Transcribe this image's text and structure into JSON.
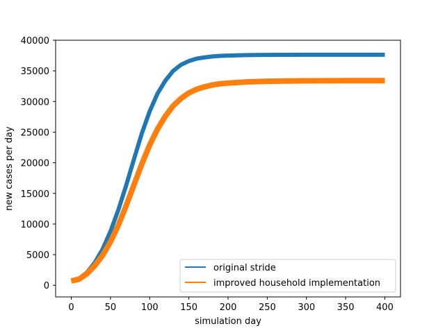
{
  "chart_data": {
    "type": "line",
    "title": "",
    "xlabel": "simulation day",
    "ylabel": "new cases per day",
    "xlim": [
      -20,
      420
    ],
    "ylim": [
      -1900,
      40000
    ],
    "x_ticks": [
      0,
      50,
      100,
      150,
      200,
      250,
      300,
      350,
      400
    ],
    "y_ticks": [
      0,
      5000,
      10000,
      15000,
      20000,
      25000,
      30000,
      35000,
      40000
    ],
    "grid": false,
    "legend_position": "bottom-right",
    "series": [
      {
        "name": "original stride",
        "color": "#1f77b4",
        "x": [
          0,
          10,
          20,
          30,
          40,
          50,
          60,
          70,
          80,
          90,
          100,
          110,
          120,
          130,
          140,
          150,
          160,
          170,
          180,
          190,
          200,
          225,
          250,
          275,
          300,
          325,
          350,
          375,
          400
        ],
        "y": [
          700,
          1100,
          2100,
          3700,
          5900,
          8800,
          12300,
          16300,
          20600,
          24800,
          28400,
          31300,
          33400,
          35000,
          36000,
          36600,
          37000,
          37200,
          37350,
          37450,
          37500,
          37580,
          37610,
          37620,
          37630,
          37630,
          37630,
          37630,
          37630
        ]
      },
      {
        "name": "improved household implementation",
        "color": "#ff7f0e",
        "x": [
          0,
          10,
          20,
          30,
          40,
          50,
          60,
          70,
          80,
          90,
          100,
          110,
          120,
          130,
          140,
          150,
          160,
          170,
          180,
          190,
          200,
          225,
          250,
          275,
          300,
          325,
          350,
          375,
          400
        ],
        "y": [
          700,
          1000,
          1900,
          3200,
          4900,
          7100,
          9800,
          13000,
          16400,
          19800,
          22900,
          25500,
          27600,
          29300,
          30500,
          31400,
          32000,
          32400,
          32700,
          32900,
          33000,
          33200,
          33300,
          33350,
          33380,
          33390,
          33400,
          33400,
          33400
        ]
      }
    ]
  }
}
